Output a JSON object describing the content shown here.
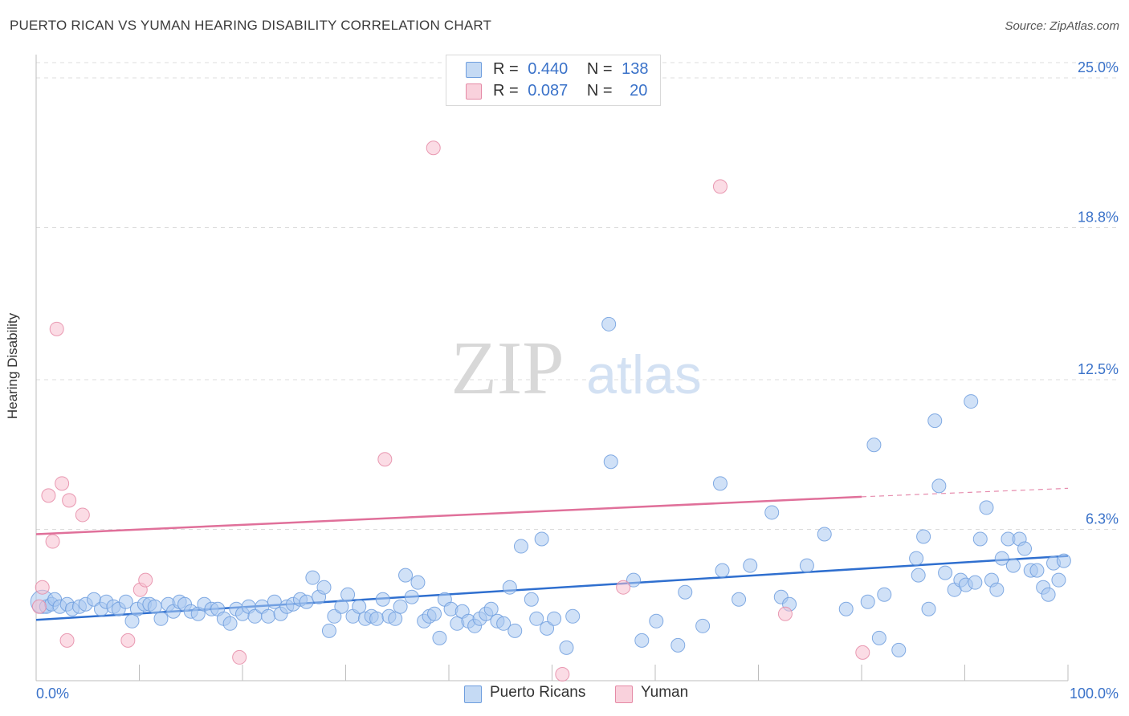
{
  "title": "PUERTO RICAN VS YUMAN HEARING DISABILITY CORRELATION CHART",
  "source": "Source: ZipAtlas.com",
  "watermark": {
    "zip": "ZIP",
    "atlas": "atlas"
  },
  "colors": {
    "blue_fill": "#a9c8f0",
    "blue_stroke": "#6f9ede",
    "blue_line": "#2f6fcf",
    "pink_fill": "#f7c0cf",
    "pink_stroke": "#e58aa6",
    "pink_line": "#e0709a",
    "axis_label": "#3a72c9",
    "grid": "#dcdcdc"
  },
  "legend_top": {
    "rows": [
      {
        "r_label": "R =",
        "r_value": "0.440",
        "n_label": "N =",
        "n_value": "138",
        "color": "blue"
      },
      {
        "r_label": "R =",
        "r_value": "0.087",
        "n_label": "N =",
        "n_value": "20",
        "color": "pink"
      }
    ]
  },
  "legend_bottom": {
    "series1": "Puerto Ricans",
    "series2": "Yuman"
  },
  "chart_data": {
    "type": "scatter",
    "title": "PUERTO RICAN VS YUMAN HEARING DISABILITY CORRELATION CHART",
    "xlabel": "",
    "ylabel": "Hearing Disability",
    "xlim": [
      0,
      100
    ],
    "ylim": [
      0,
      25.8
    ],
    "x_tick_labels": {
      "min": "0.0%",
      "max": "100.0%"
    },
    "y_ticks": [
      {
        "value": 6.3,
        "label": "6.3%"
      },
      {
        "value": 12.5,
        "label": "12.5%"
      },
      {
        "value": 18.8,
        "label": "18.8%"
      },
      {
        "value": 25.0,
        "label": "25.0%"
      }
    ],
    "grid": true,
    "series": [
      {
        "name": "Puerto Ricans",
        "color": "blue",
        "trend": {
          "x": [
            0,
            100
          ],
          "y": [
            2.55,
            5.2
          ]
        },
        "points": [
          [
            0.6,
            3.3,
            14
          ],
          [
            1.0,
            3.1,
            8
          ],
          [
            1.5,
            3.2,
            8
          ],
          [
            1.8,
            3.4,
            8
          ],
          [
            2.3,
            3.1,
            8
          ],
          [
            3.0,
            3.2,
            8
          ],
          [
            3.5,
            3.0,
            8
          ],
          [
            4.2,
            3.1,
            8
          ],
          [
            4.8,
            3.2,
            8
          ],
          [
            5.6,
            3.4,
            8
          ],
          [
            6.3,
            3.0,
            8
          ],
          [
            6.8,
            3.3,
            8
          ],
          [
            7.5,
            3.1,
            8
          ],
          [
            8.0,
            3.0,
            8
          ],
          [
            8.7,
            3.3,
            8
          ],
          [
            9.3,
            2.5,
            8
          ],
          [
            9.8,
            3.0,
            8
          ],
          [
            10.5,
            3.2,
            8
          ],
          [
            11.0,
            3.2,
            8
          ],
          [
            11.5,
            3.1,
            8
          ],
          [
            12.1,
            2.6,
            8
          ],
          [
            12.8,
            3.2,
            8
          ],
          [
            13.3,
            2.9,
            8
          ],
          [
            13.9,
            3.3,
            8
          ],
          [
            14.4,
            3.2,
            8
          ],
          [
            15.0,
            2.9,
            8
          ],
          [
            15.7,
            2.8,
            8
          ],
          [
            16.3,
            3.2,
            8
          ],
          [
            17.0,
            3.0,
            8
          ],
          [
            17.6,
            3.0,
            8
          ],
          [
            18.2,
            2.6,
            8
          ],
          [
            18.8,
            2.4,
            8
          ],
          [
            19.4,
            3.0,
            8
          ],
          [
            20.0,
            2.8,
            8
          ],
          [
            20.6,
            3.1,
            8
          ],
          [
            21.2,
            2.7,
            8
          ],
          [
            21.9,
            3.1,
            8
          ],
          [
            22.5,
            2.7,
            8
          ],
          [
            23.1,
            3.3,
            8
          ],
          [
            23.7,
            2.8,
            8
          ],
          [
            24.3,
            3.1,
            8
          ],
          [
            24.9,
            3.2,
            8
          ],
          [
            25.6,
            3.4,
            8
          ],
          [
            26.2,
            3.3,
            8
          ],
          [
            26.8,
            4.3,
            8
          ],
          [
            27.4,
            3.5,
            8
          ],
          [
            27.9,
            3.9,
            8
          ],
          [
            28.4,
            2.1,
            8
          ],
          [
            28.9,
            2.7,
            8
          ],
          [
            29.6,
            3.1,
            8
          ],
          [
            30.2,
            3.6,
            8
          ],
          [
            30.7,
            2.7,
            8
          ],
          [
            31.3,
            3.1,
            8
          ],
          [
            31.9,
            2.6,
            8
          ],
          [
            32.5,
            2.7,
            8
          ],
          [
            33.0,
            2.6,
            8
          ],
          [
            33.6,
            3.4,
            8
          ],
          [
            34.2,
            2.7,
            8
          ],
          [
            34.8,
            2.6,
            8
          ],
          [
            35.3,
            3.1,
            8
          ],
          [
            35.8,
            4.4,
            8
          ],
          [
            36.4,
            3.5,
            8
          ],
          [
            37.0,
            4.1,
            8
          ],
          [
            37.6,
            2.5,
            8
          ],
          [
            38.1,
            2.7,
            8
          ],
          [
            38.6,
            2.8,
            8
          ],
          [
            39.1,
            1.8,
            8
          ],
          [
            39.6,
            3.4,
            8
          ],
          [
            40.2,
            3.0,
            8
          ],
          [
            40.8,
            2.4,
            8
          ],
          [
            41.3,
            2.9,
            8
          ],
          [
            41.9,
            2.5,
            8
          ],
          [
            42.5,
            2.3,
            8
          ],
          [
            43.0,
            2.6,
            8
          ],
          [
            43.6,
            2.8,
            8
          ],
          [
            44.1,
            3.0,
            8
          ],
          [
            44.7,
            2.5,
            8
          ],
          [
            45.3,
            2.4,
            8
          ],
          [
            45.9,
            3.9,
            8
          ],
          [
            46.4,
            2.1,
            8
          ],
          [
            47.0,
            5.6,
            8
          ],
          [
            48.0,
            3.4,
            8
          ],
          [
            48.5,
            2.6,
            8
          ],
          [
            49.0,
            5.9,
            8
          ],
          [
            49.5,
            2.2,
            8
          ],
          [
            50.2,
            2.6,
            8
          ],
          [
            51.4,
            1.4,
            8
          ],
          [
            52.0,
            2.7,
            8
          ],
          [
            55.5,
            14.8,
            8
          ],
          [
            55.7,
            9.1,
            8
          ],
          [
            57.9,
            4.2,
            8
          ],
          [
            58.7,
            1.7,
            8
          ],
          [
            60.1,
            2.5,
            8
          ],
          [
            62.2,
            1.5,
            8
          ],
          [
            62.9,
            3.7,
            8
          ],
          [
            64.6,
            2.3,
            8
          ],
          [
            66.3,
            8.2,
            8
          ],
          [
            66.5,
            4.6,
            8
          ],
          [
            68.1,
            3.4,
            8
          ],
          [
            69.2,
            4.8,
            8
          ],
          [
            71.3,
            7.0,
            8
          ],
          [
            72.2,
            3.5,
            8
          ],
          [
            73.0,
            3.2,
            8
          ],
          [
            74.7,
            4.8,
            8
          ],
          [
            76.4,
            6.1,
            8
          ],
          [
            78.5,
            3.0,
            8
          ],
          [
            80.6,
            3.3,
            8
          ],
          [
            81.2,
            9.8,
            8
          ],
          [
            81.7,
            1.8,
            8
          ],
          [
            82.2,
            3.6,
            8
          ],
          [
            83.6,
            1.3,
            8
          ],
          [
            85.3,
            5.1,
            8
          ],
          [
            85.5,
            4.4,
            8
          ],
          [
            86.0,
            6.0,
            8
          ],
          [
            86.5,
            3.0,
            8
          ],
          [
            87.1,
            10.8,
            8
          ],
          [
            87.5,
            8.1,
            8
          ],
          [
            88.1,
            4.5,
            8
          ],
          [
            89.0,
            3.8,
            8
          ],
          [
            89.6,
            4.2,
            8
          ],
          [
            90.1,
            4.0,
            8
          ],
          [
            90.6,
            11.6,
            8
          ],
          [
            91.0,
            4.1,
            8
          ],
          [
            91.5,
            5.9,
            8
          ],
          [
            92.1,
            7.2,
            8
          ],
          [
            92.6,
            4.2,
            8
          ],
          [
            93.1,
            3.8,
            8
          ],
          [
            93.6,
            5.1,
            8
          ],
          [
            94.2,
            5.9,
            8
          ],
          [
            94.7,
            4.8,
            8
          ],
          [
            95.3,
            5.9,
            8
          ],
          [
            95.8,
            5.5,
            8
          ],
          [
            96.4,
            4.6,
            8
          ],
          [
            97.0,
            4.6,
            8
          ],
          [
            97.6,
            3.9,
            8
          ],
          [
            98.1,
            3.6,
            8
          ],
          [
            98.6,
            4.9,
            8
          ],
          [
            99.1,
            4.2,
            8
          ],
          [
            99.6,
            5.0,
            8
          ]
        ]
      },
      {
        "name": "Yuman",
        "color": "pink",
        "trend": {
          "x": [
            0,
            80
          ],
          "y": [
            6.1,
            7.65
          ],
          "dashed_to": [
            100,
            8.0
          ]
        },
        "points": [
          [
            0.3,
            3.1,
            8
          ],
          [
            0.6,
            3.9,
            8
          ],
          [
            1.2,
            7.7,
            8
          ],
          [
            1.6,
            5.8,
            8
          ],
          [
            2.0,
            14.6,
            8
          ],
          [
            2.5,
            8.2,
            8
          ],
          [
            3.0,
            1.7,
            8
          ],
          [
            3.2,
            7.5,
            8
          ],
          [
            4.5,
            6.9,
            8
          ],
          [
            8.9,
            1.7,
            8
          ],
          [
            10.1,
            3.8,
            8
          ],
          [
            10.6,
            4.2,
            8
          ],
          [
            19.7,
            1.0,
            8
          ],
          [
            33.8,
            9.2,
            8
          ],
          [
            38.5,
            22.1,
            8
          ],
          [
            51.0,
            0.3,
            8
          ],
          [
            56.9,
            3.9,
            8
          ],
          [
            66.3,
            20.5,
            8
          ],
          [
            72.6,
            2.8,
            8
          ],
          [
            80.1,
            1.2,
            8
          ]
        ]
      }
    ]
  }
}
